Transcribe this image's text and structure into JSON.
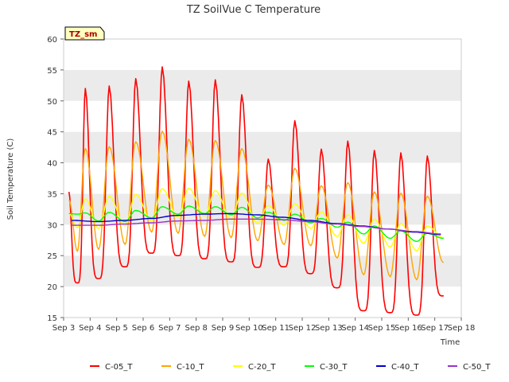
{
  "chart_data": {
    "type": "line",
    "title": "TZ SoilVue C Temperature",
    "xlabel": "Time",
    "ylabel": "Soil Temperature (C)",
    "badge": "TZ_sm",
    "ylim": [
      15,
      60
    ],
    "xlim": [
      3,
      18
    ],
    "yticks": [
      "15",
      "20",
      "25",
      "30",
      "35",
      "40",
      "45",
      "50",
      "55",
      "60"
    ],
    "xticks": [
      "Sep 3",
      "Sep 4",
      "Sep 5",
      "Sep 6",
      "Sep 7",
      "Sep 8",
      "Sep 9",
      "Sep 10",
      "Sep 11",
      "Sep 12",
      "Sep 13",
      "Sep 14",
      "Sep 15",
      "Sep 16",
      "Sep 17",
      "Sep 18"
    ],
    "grid": "horizontal bands",
    "legend": "bottom",
    "series": [
      {
        "name": "C-05_T",
        "color": "#ff0000",
        "daily_max": [
          52.0,
          52.4,
          53.6,
          55.5,
          53.2,
          53.4,
          51.0,
          40.6,
          46.8,
          42.2,
          43.5,
          42.0,
          41.6,
          41.1
        ],
        "daily_min": [
          20.6,
          21.3,
          23.2,
          25.4,
          25.0,
          24.5,
          24.0,
          23.1,
          23.2,
          22.1,
          19.8,
          16.1,
          15.8,
          15.4,
          18.5
        ]
      },
      {
        "name": "C-10_T",
        "color": "#ffa500",
        "daily_max": [
          42.3,
          42.6,
          43.4,
          45.1,
          43.8,
          43.6,
          42.3,
          36.4,
          39.1,
          36.3,
          36.8,
          35.3,
          35.1,
          34.6
        ],
        "daily_min": [
          25.7,
          26.0,
          26.8,
          28.8,
          28.6,
          28.1,
          27.9,
          27.4,
          26.8,
          26.6,
          24.6,
          21.9,
          21.6,
          21.1,
          23.9
        ]
      },
      {
        "name": "C-20_T",
        "color": "#ffff00",
        "daily_max": [
          34.2,
          34.6,
          34.9,
          35.8,
          35.9,
          35.5,
          35.1,
          33.1,
          33.4,
          32.1,
          31.6,
          30.9,
          30.2,
          29.8
        ],
        "daily_min": [
          29.5,
          29.4,
          29.8,
          30.6,
          31.2,
          31.4,
          30.9,
          30.2,
          29.9,
          29.4,
          28.1,
          27.0,
          26.4,
          25.8,
          27.9
        ]
      },
      {
        "name": "C-30_T",
        "color": "#00ff00",
        "daily_max": [
          31.9,
          32.0,
          32.3,
          32.9,
          33.0,
          32.9,
          32.8,
          32.0,
          31.7,
          31.0,
          30.4,
          29.8,
          29.0,
          28.6
        ],
        "daily_min": [
          31.7,
          30.6,
          30.5,
          31.1,
          31.7,
          31.8,
          31.6,
          31.1,
          30.7,
          30.3,
          29.6,
          28.5,
          27.8,
          27.3,
          27.8
        ]
      },
      {
        "name": "C-40_T",
        "color": "#0000cc",
        "values": [
          30.7,
          30.5,
          30.7,
          31.0,
          31.5,
          31.7,
          31.8,
          31.6,
          31.2,
          30.7,
          30.2,
          29.8,
          29.3,
          28.8,
          28.4
        ]
      },
      {
        "name": "C-50_T",
        "color": "#9932cc",
        "values": [
          29.9,
          29.9,
          30.1,
          30.3,
          30.6,
          30.7,
          30.9,
          30.9,
          30.8,
          30.5,
          30.1,
          29.7,
          29.3,
          28.9,
          28.5
        ]
      }
    ]
  }
}
